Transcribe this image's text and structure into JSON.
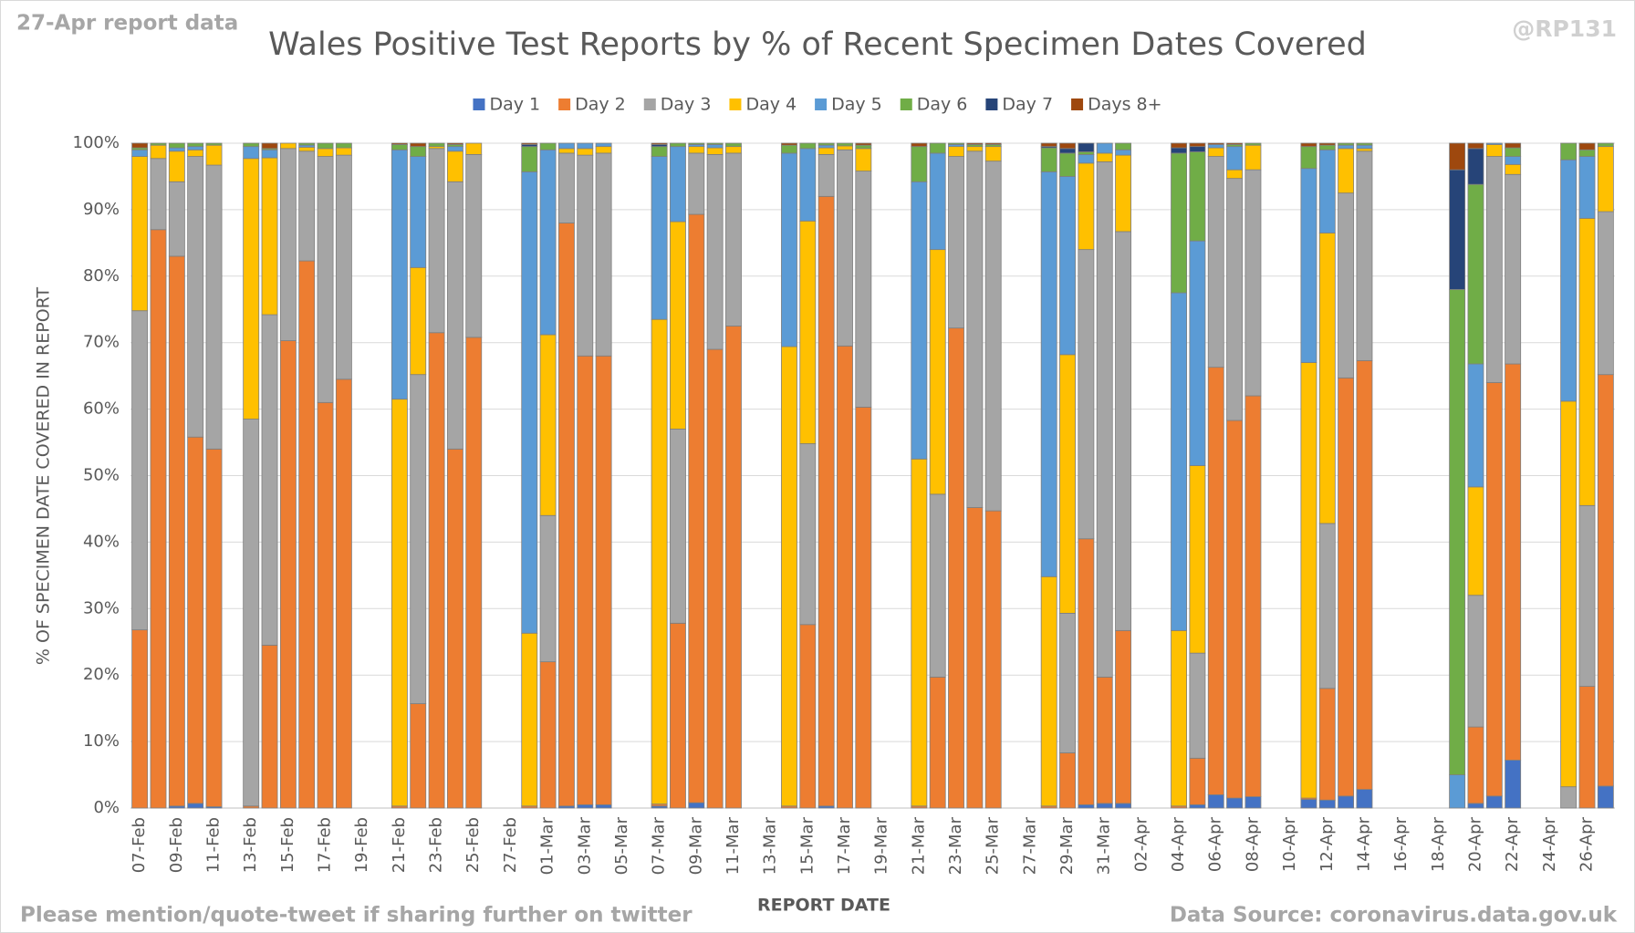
{
  "chart_data": {
    "type": "stacked_bar",
    "title": "Wales Positive Test Reports by % of Recent Specimen Dates Covered",
    "subtitle": "27-Apr report data",
    "handle": "@RP131",
    "x_label": "REPORT DATE",
    "y_label": "% OF SPECIMEN DATE COVERED IN REPORT",
    "footer_left": "Please mention/quote-tweet if sharing further on twitter",
    "footer_right": "Data Source: coronavirus.data.gov.uk",
    "legend": "top",
    "grid": true,
    "ylim": [
      0,
      100
    ],
    "yticks": [
      {
        "value": 0,
        "label": "0%"
      },
      {
        "value": 10,
        "label": "10%"
      },
      {
        "value": 20,
        "label": "20%"
      },
      {
        "value": 30,
        "label": "30%"
      },
      {
        "value": 40,
        "label": "40%"
      },
      {
        "value": 50,
        "label": "50%"
      },
      {
        "value": 60,
        "label": "60%"
      },
      {
        "value": 70,
        "label": "70%"
      },
      {
        "value": 80,
        "label": "80%"
      },
      {
        "value": 90,
        "label": "90%"
      },
      {
        "value": 100,
        "label": "100%"
      }
    ],
    "categories": [
      "07-Feb",
      null,
      "09-Feb",
      null,
      "11-Feb",
      null,
      "13-Feb",
      null,
      "15-Feb",
      null,
      "17-Feb",
      null,
      "19-Feb",
      null,
      "21-Feb",
      null,
      "23-Feb",
      null,
      "25-Feb",
      null,
      "27-Feb",
      null,
      "01-Mar",
      null,
      "03-Mar",
      null,
      "05-Mar",
      null,
      "07-Mar",
      null,
      "09-Mar",
      null,
      "11-Mar",
      null,
      "13-Mar",
      null,
      "15-Mar",
      null,
      "17-Mar",
      null,
      "19-Mar",
      null,
      "21-Mar",
      null,
      "23-Mar",
      null,
      "25-Mar",
      null,
      "27-Mar",
      null,
      "29-Mar",
      null,
      "31-Mar",
      null,
      "02-Apr",
      null,
      "04-Apr",
      null,
      "06-Apr",
      null,
      "08-Apr",
      null,
      "10-Apr",
      null,
      "12-Apr",
      null,
      "14-Apr",
      null,
      "16-Apr",
      null,
      "18-Apr",
      null,
      "20-Apr",
      null,
      "22-Apr",
      null,
      "24-Apr",
      null,
      "26-Apr",
      null
    ],
    "series": [
      {
        "name": "Day 1",
        "color": "#4472c4",
        "values": [
          0,
          0,
          0.3,
          0.7,
          0.2,
          null,
          0,
          0,
          0,
          0,
          0,
          0,
          null,
          null,
          0,
          0,
          0,
          0,
          0,
          null,
          null,
          0,
          0,
          0.3,
          0.5,
          0.5,
          null,
          null,
          0.3,
          0,
          0.8,
          0,
          0,
          null,
          null,
          0,
          0,
          0.3,
          0,
          0,
          null,
          null,
          0,
          0,
          0,
          0,
          0,
          null,
          null,
          0,
          0,
          0.5,
          0.7,
          0.7,
          null,
          null,
          0,
          0.5,
          2,
          1.5,
          1.7,
          null,
          null,
          1.3,
          1.2,
          1.8,
          2.8,
          null,
          null,
          null,
          null,
          0,
          0.7,
          1.8,
          7.2,
          null,
          null,
          0,
          0,
          3.3
        ]
      },
      {
        "name": "Day 2",
        "color": "#ed7d31",
        "values": [
          26.8,
          87,
          82.7,
          55.1,
          53.8,
          null,
          0.3,
          24.5,
          70.3,
          82.3,
          61,
          64.5,
          null,
          null,
          0.3,
          15.7,
          71.5,
          54,
          70.8,
          null,
          null,
          0.3,
          22,
          87.7,
          67.5,
          67.5,
          null,
          null,
          0.3,
          27.8,
          88.5,
          69,
          72.5,
          null,
          null,
          0.3,
          27.6,
          91.7,
          69.5,
          60.3,
          null,
          null,
          0.3,
          19.7,
          72.2,
          45.2,
          44.7,
          null,
          null,
          0.3,
          8.3,
          40,
          19,
          26,
          null,
          null,
          0.3,
          7,
          64.3,
          56.8,
          60.3,
          null,
          null,
          0.2,
          16.8,
          62.9,
          64.5,
          null,
          null,
          null,
          null,
          0,
          11.5,
          62.2,
          59.6,
          null,
          null,
          0,
          18.3,
          61.9
        ]
      },
      {
        "name": "Day 3",
        "color": "#a5a5a5",
        "values": [
          48,
          10.7,
          11.2,
          42.2,
          42.7,
          null,
          58.2,
          49.7,
          28.9,
          16.5,
          37,
          33.7,
          null,
          null,
          0,
          49.5,
          27.7,
          40.2,
          27.5,
          null,
          null,
          0,
          22,
          10.5,
          30.2,
          30.5,
          null,
          null,
          0,
          29.2,
          9.2,
          29.3,
          26,
          null,
          null,
          0,
          27.2,
          6.3,
          29.5,
          35.5,
          null,
          null,
          0,
          27.5,
          25.8,
          53.6,
          52.6,
          null,
          null,
          0,
          21,
          43.5,
          77.5,
          60,
          null,
          null,
          0,
          15.8,
          31.7,
          36.4,
          34,
          null,
          null,
          0,
          24.8,
          27.8,
          31.5,
          null,
          null,
          null,
          null,
          0,
          19.8,
          34,
          28.5,
          null,
          null,
          3.2,
          27.2,
          24.5
        ]
      },
      {
        "name": "Day 4",
        "color": "#ffc000",
        "values": [
          23.2,
          2,
          4.6,
          1,
          3,
          null,
          39.2,
          23.6,
          0.8,
          0.6,
          1.2,
          1.1,
          null,
          null,
          61.2,
          16.1,
          0.3,
          4.6,
          1.7,
          null,
          null,
          26,
          27.2,
          0.7,
          1,
          1,
          null,
          null,
          72.9,
          31.2,
          1,
          1,
          1,
          null,
          null,
          69.1,
          33.5,
          1,
          0.6,
          3.4,
          null,
          null,
          52.2,
          36.8,
          1.5,
          0.7,
          2.2,
          null,
          null,
          34.5,
          38.9,
          13,
          1.3,
          11.5,
          null,
          null,
          26.4,
          28.2,
          1.3,
          1.3,
          3.7,
          null,
          null,
          65.5,
          43.7,
          6.7,
          0.4,
          null,
          null,
          null,
          null,
          0,
          16.3,
          1.8,
          1.5,
          null,
          null,
          58,
          43.2,
          9.8
        ]
      },
      {
        "name": "Day 5",
        "color": "#5b9bd5",
        "values": [
          1,
          0,
          0.5,
          0.5,
          0,
          null,
          1.8,
          1.2,
          0,
          0.3,
          0,
          0,
          null,
          null,
          37.5,
          16.7,
          0,
          0.7,
          0,
          null,
          null,
          69.4,
          27.8,
          0.8,
          0.8,
          0.5,
          null,
          null,
          24.5,
          11.3,
          0.3,
          0.5,
          0,
          null,
          null,
          29.1,
          10.9,
          0.4,
          0,
          0,
          null,
          null,
          41.7,
          14.5,
          0.3,
          0,
          0,
          null,
          null,
          60.9,
          26.8,
          1.3,
          1.5,
          0.8,
          null,
          null,
          50.8,
          33.8,
          0.5,
          3.5,
          0,
          null,
          null,
          29.2,
          12.5,
          0.5,
          0.5,
          null,
          null,
          null,
          null,
          5,
          18.5,
          0.2,
          1.2,
          null,
          null,
          36.3,
          9.3,
          0
        ]
      },
      {
        "name": "Day 6",
        "color": "#70ad47",
        "values": [
          0.3,
          0.3,
          0.7,
          0.5,
          0.3,
          null,
          0.5,
          0.2,
          0,
          0.3,
          0.8,
          0.7,
          null,
          null,
          0.8,
          1.5,
          0.5,
          0.3,
          0,
          null,
          null,
          3.8,
          1,
          0,
          0,
          0,
          null,
          null,
          1.5,
          0.5,
          0.2,
          0.2,
          0.5,
          null,
          null,
          1.2,
          0.8,
          0.3,
          0.4,
          0.5,
          null,
          null,
          5.3,
          1.5,
          0.2,
          0.3,
          0.3,
          null,
          null,
          3.6,
          3.5,
          0.4,
          0,
          1,
          null,
          null,
          21,
          13.4,
          0,
          0.3,
          0.3,
          null,
          null,
          3.3,
          0.7,
          0.3,
          0.3,
          null,
          null,
          null,
          null,
          73,
          27,
          0,
          1.3,
          null,
          null,
          2.5,
          1,
          0.5
        ]
      },
      {
        "name": "Day 7",
        "color": "#264478",
        "values": [
          0,
          0,
          0,
          0,
          0,
          null,
          0,
          0,
          0,
          0,
          0,
          0,
          null,
          null,
          0,
          0,
          0,
          0,
          0,
          null,
          null,
          0.3,
          0,
          0,
          0,
          0,
          null,
          null,
          0.3,
          0,
          0,
          0,
          0,
          null,
          null,
          0,
          0,
          0,
          0,
          0,
          null,
          null,
          0,
          0,
          0,
          0,
          0,
          null,
          null,
          0.2,
          0.7,
          1.3,
          0,
          0,
          null,
          null,
          0.8,
          0.8,
          0,
          0,
          0,
          null,
          null,
          0,
          0,
          0,
          0,
          null,
          null,
          null,
          null,
          18,
          5.4,
          0,
          0,
          null,
          null,
          0,
          0,
          0
        ]
      },
      {
        "name": "Days 8+",
        "color": "#9e480e",
        "values": [
          0.7,
          0,
          0,
          0,
          0,
          null,
          0,
          0.8,
          0,
          0,
          0,
          0,
          null,
          null,
          0.2,
          0.5,
          0,
          0.2,
          0,
          null,
          null,
          0.2,
          0,
          0,
          0,
          0,
          null,
          null,
          0.2,
          0,
          0,
          0,
          0,
          null,
          null,
          0.3,
          0,
          0,
          0,
          0.3,
          null,
          null,
          0.5,
          0,
          0,
          0.2,
          0.2,
          null,
          null,
          0.5,
          0.8,
          0,
          0,
          0,
          null,
          null,
          0.7,
          0.5,
          0.2,
          0.2,
          0,
          null,
          null,
          0.5,
          0.3,
          0,
          0,
          null,
          null,
          null,
          null,
          4,
          0.8,
          0,
          0.7,
          null,
          null,
          0,
          1,
          0
        ]
      }
    ]
  }
}
